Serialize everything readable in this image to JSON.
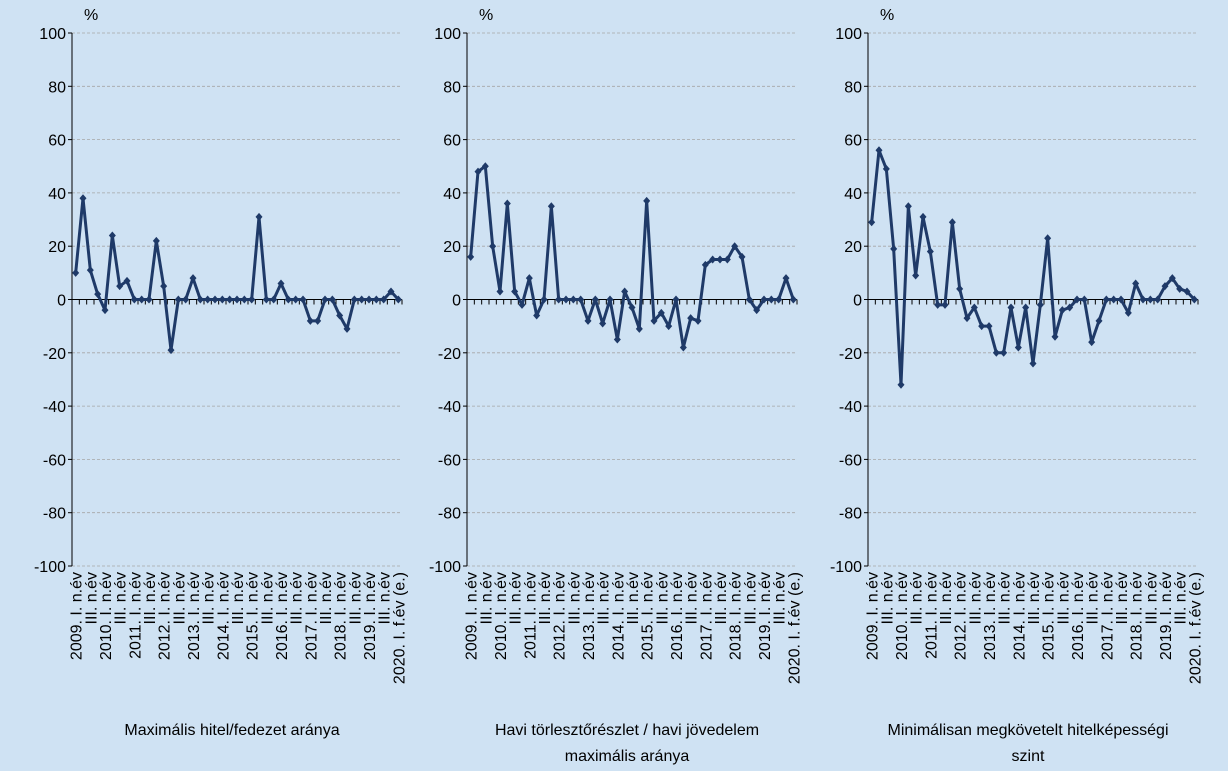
{
  "chart_data": [
    {
      "type": "line",
      "title": "Maximális hitel/fedezet aránya",
      "y_label": "%",
      "categories": [
        "2009. I. n.év",
        null,
        "III. n.év",
        null,
        "2010. I. n.év",
        null,
        "III. n.év",
        null,
        "2011. I. n.év",
        null,
        "III. n.év",
        null,
        "2012. I. n.év",
        null,
        "III. n.év",
        null,
        "2013. I. n.év",
        null,
        "III. n.év",
        null,
        "2014. I. n.év",
        null,
        "III. n.év",
        null,
        "2015. I. n.év",
        null,
        "III. n.év",
        null,
        "2016. I. n.év",
        null,
        "III. n.év",
        null,
        "2017. I. n.év",
        null,
        "III. n.év",
        null,
        "2018. I. n.év",
        null,
        "III. n.év",
        null,
        "2019. I. n.év",
        null,
        "III. n.év",
        null,
        "2020. I. f.év (e.)"
      ],
      "values": [
        10,
        38,
        11,
        2,
        -4,
        24,
        5,
        7,
        0,
        0,
        0,
        22,
        5,
        -19,
        0,
        0,
        8,
        0,
        0,
        0,
        0,
        0,
        0,
        0,
        0,
        31,
        0,
        0,
        6,
        0,
        0,
        0,
        -8,
        -8,
        0,
        0,
        -6,
        -11,
        0,
        0,
        0,
        0,
        0,
        3,
        0
      ],
      "color": "#1f3a68",
      "ylim": [
        -100,
        100
      ],
      "yticks": [
        -100,
        -80,
        -60,
        -40,
        -20,
        0,
        20,
        40,
        60,
        80,
        100
      ],
      "grid": true
    },
    {
      "type": "line",
      "title": "Havi törlesztőrészlet / havi jövedelem maximális aránya",
      "y_label": "%",
      "categories": [
        "2009. I. n.év",
        null,
        "III. n.év",
        null,
        "2010. I. n.év",
        null,
        "III. n.év",
        null,
        "2011. I. n.év",
        null,
        "III. n.év",
        null,
        "2012. I. n.év",
        null,
        "III. n.év",
        null,
        "2013. I. n.év",
        null,
        "III. n.év",
        null,
        "2014. I. n.év",
        null,
        "III. n.év",
        null,
        "2015. I. n.év",
        null,
        "III. n.év",
        null,
        "2016. I. n.év",
        null,
        "III. n.év",
        null,
        "2017. I. n.év",
        null,
        "III. n.év",
        null,
        "2018. I. n.év",
        null,
        "III. n.év",
        null,
        "2019. I. n.év",
        null,
        "III. n.év",
        null,
        "2020. I. f.év (e.)"
      ],
      "values": [
        16,
        48,
        50,
        20,
        3,
        36,
        3,
        -2,
        8,
        -6,
        0,
        35,
        0,
        0,
        0,
        0,
        -8,
        0,
        -9,
        0,
        -15,
        3,
        -3,
        -11,
        37,
        -8,
        -5,
        -10,
        0,
        -18,
        -7,
        -8,
        13,
        15,
        15,
        15,
        20,
        16,
        0,
        -4,
        0,
        0,
        0,
        8,
        0
      ],
      "color": "#1f3a68",
      "ylim": [
        -100,
        100
      ],
      "yticks": [
        -100,
        -80,
        -60,
        -40,
        -20,
        0,
        20,
        40,
        60,
        80,
        100
      ],
      "grid": true
    },
    {
      "type": "line",
      "title": "Minimálisan megkövetelt hitelképességi szint",
      "y_label": "%",
      "categories": [
        "2009. I. n.év",
        null,
        "III. n.év",
        null,
        "2010. I. n.év",
        null,
        "III. n.év",
        null,
        "2011. I. n.év",
        null,
        "III. n.év",
        null,
        "2012. I. n.év",
        null,
        "III. n.év",
        null,
        "2013. I. n.év",
        null,
        "III. n.év",
        null,
        "2014. I. n.év",
        null,
        "III. n.év",
        null,
        "2015. I. n.év",
        null,
        "III. n.év",
        null,
        "2016. I. n.év",
        null,
        "III. n.év",
        null,
        "2017. I. n.év",
        null,
        "III. n.év",
        null,
        "2018. I. n.év",
        null,
        "III. n.év",
        null,
        "2019. I. n.év",
        null,
        "III. n.év",
        null,
        "2020. I. f.év (e.)"
      ],
      "values": [
        29,
        56,
        49,
        19,
        -32,
        35,
        9,
        31,
        18,
        -2,
        -2,
        29,
        4,
        -7,
        -3,
        -10,
        -10,
        -20,
        -20,
        -3,
        -18,
        -3,
        -24,
        -2,
        23,
        -14,
        -4,
        -3,
        0,
        0,
        -16,
        -8,
        0,
        0,
        0,
        -5,
        6,
        0,
        0,
        0,
        5,
        8,
        4,
        3,
        0
      ],
      "color": "#1f3a68",
      "ylim": [
        -100,
        100
      ],
      "yticks": [
        -100,
        -80,
        -60,
        -40,
        -20,
        0,
        20,
        40,
        60,
        80,
        100
      ],
      "grid": true
    }
  ]
}
